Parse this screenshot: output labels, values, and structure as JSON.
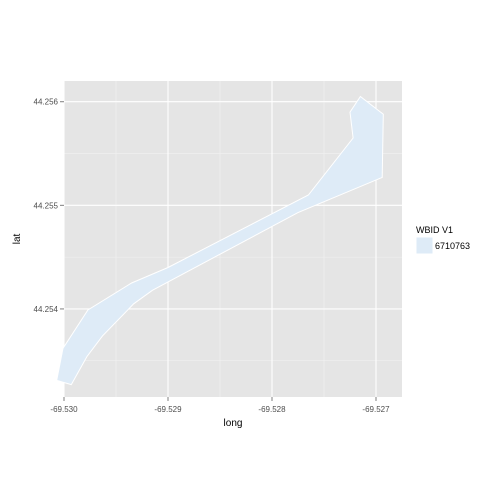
{
  "chart_data": {
    "type": "area",
    "xlabel": "long",
    "ylabel": "lat",
    "xlim": [
      -69.53,
      -69.52675
    ],
    "ylim": [
      44.25315,
      44.2562
    ],
    "x_ticks": [
      -69.53,
      -69.529,
      -69.528,
      -69.527
    ],
    "x_tick_labels": [
      "-69.530",
      "-69.529",
      "-69.528",
      "-69.527"
    ],
    "y_ticks": [
      44.254,
      44.255,
      44.256
    ],
    "y_tick_labels": [
      "44.254",
      "44.255",
      "44.256"
    ],
    "grid": true,
    "legend": {
      "title": "WBID V1",
      "position": "right",
      "entries": [
        {
          "label": "6710763",
          "color": "#deebf7"
        }
      ]
    },
    "series": [
      {
        "name": "6710763",
        "fill": "#deebf7",
        "stroke": "#ffffff",
        "polygon": [
          [
            -69.52715,
            44.25605
          ],
          [
            -69.52693,
            44.25588
          ],
          [
            -69.52694,
            44.25527
          ],
          [
            -69.52775,
            44.25493
          ],
          [
            -69.52915,
            44.25418
          ],
          [
            -69.52933,
            44.25405
          ],
          [
            -69.52963,
            44.25374
          ],
          [
            -69.52978,
            44.25354
          ],
          [
            -69.52993,
            44.25327
          ],
          [
            -69.53007,
            44.25331
          ],
          [
            -69.53001,
            44.25362
          ],
          [
            -69.52977,
            44.25399
          ],
          [
            -69.52935,
            44.25425
          ],
          [
            -69.529,
            44.2544
          ],
          [
            -69.52765,
            44.2551
          ],
          [
            -69.52722,
            44.25565
          ],
          [
            -69.52725,
            44.2559
          ]
        ]
      }
    ]
  },
  "colors": {
    "panel_background": "#e5e5e5",
    "grid_major": "#ffffff",
    "grid_minor": "#f2f2f2"
  }
}
